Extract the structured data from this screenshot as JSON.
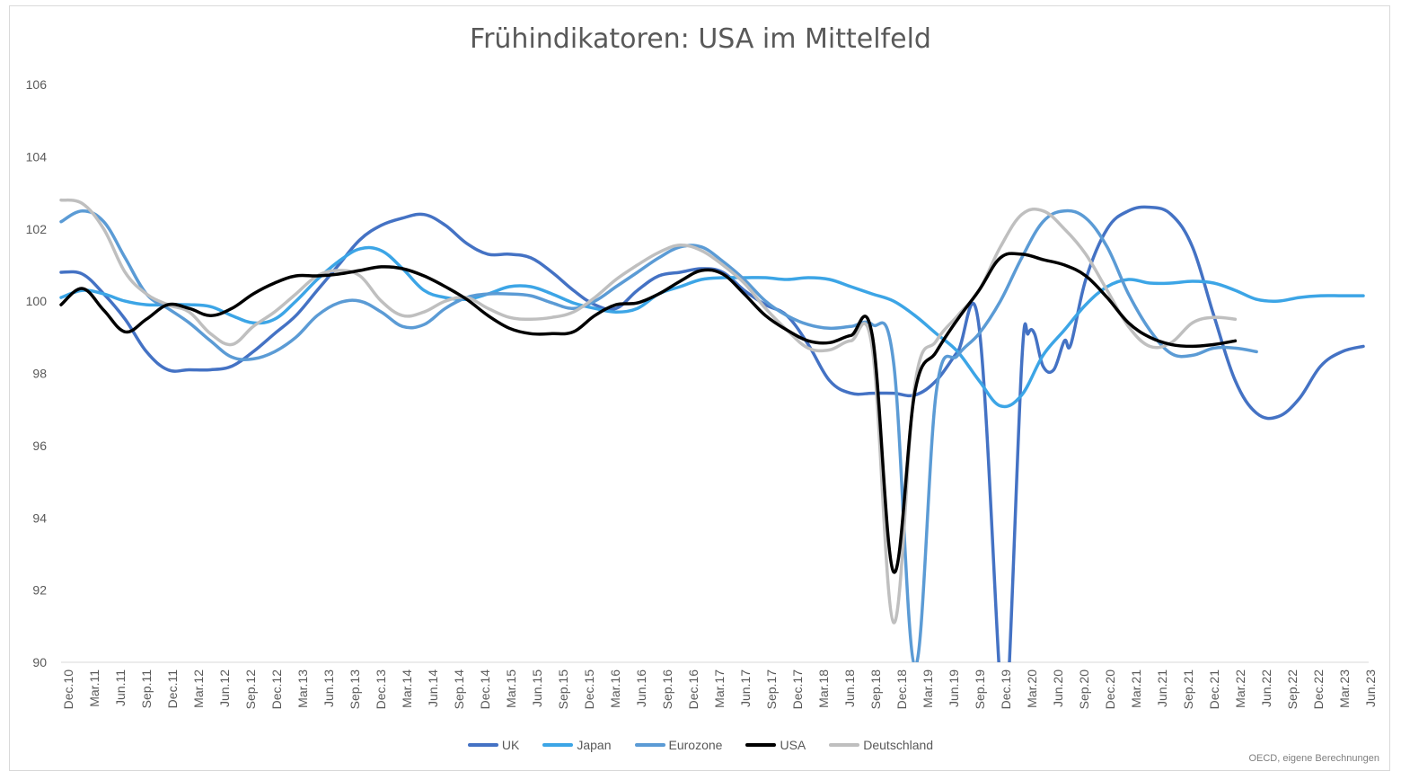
{
  "chart_data": {
    "type": "line",
    "title": "Frühindikatoren: USA im Mittelfeld",
    "source": "OECD, eigene Berechnungen",
    "ylim": [
      90,
      106
    ],
    "yticks": [
      90,
      92,
      94,
      96,
      98,
      100,
      102,
      104,
      106
    ],
    "grid": false,
    "legend_position": "bottom",
    "x_tick_labels": [
      "Dec.10",
      "Mar.11",
      "Jun.11",
      "Sep.11",
      "Dec.11",
      "Mar.12",
      "Jun.12",
      "Sep.12",
      "Dec.12",
      "Mar.13",
      "Jun.13",
      "Sep.13",
      "Dec.13",
      "Mar.14",
      "Jun.14",
      "Sep.14",
      "Dec.14",
      "Mar.15",
      "Jun.15",
      "Sep.15",
      "Dec.15",
      "Mar.16",
      "Jun.16",
      "Sep.16",
      "Dec.16",
      "Mar.17",
      "Jun.17",
      "Sep.17",
      "Dec.17",
      "Mar.18",
      "Jun.18",
      "Sep.18",
      "Dec.18",
      "Mar.19",
      "Jun.19",
      "Sep.19",
      "Dec.19",
      "Mar.20",
      "Jun.20",
      "Sep.20",
      "Dec.20",
      "Mar.21",
      "Jun.21",
      "Sep.21",
      "Dec.21",
      "Mar.22",
      "Jun.22",
      "Sep.22",
      "Dec.22",
      "Mar.23",
      "Jun.23"
    ],
    "series": [
      {
        "name": "UK",
        "color": "#4472C4",
        "points": [
          [
            0,
            100.8
          ],
          [
            1,
            100.75
          ],
          [
            2,
            100.2
          ],
          [
            3,
            99.5
          ],
          [
            4,
            98.6
          ],
          [
            5,
            98.1
          ],
          [
            6,
            98.1
          ],
          [
            7,
            98.1
          ],
          [
            8,
            98.2
          ],
          [
            9,
            98.6
          ],
          [
            10,
            99.1
          ],
          [
            11,
            99.6
          ],
          [
            12,
            100.3
          ],
          [
            13,
            101.0
          ],
          [
            14,
            101.7
          ],
          [
            15,
            102.1
          ],
          [
            16,
            102.3
          ],
          [
            17,
            102.4
          ],
          [
            18,
            102.1
          ],
          [
            19,
            101.6
          ],
          [
            20,
            101.3
          ],
          [
            21,
            101.3
          ],
          [
            22,
            101.2
          ],
          [
            23,
            100.8
          ],
          [
            24,
            100.3
          ],
          [
            25,
            99.9
          ],
          [
            26,
            99.8
          ],
          [
            27,
            100.3
          ],
          [
            28,
            100.7
          ],
          [
            29,
            100.8
          ],
          [
            30,
            100.9
          ],
          [
            31,
            100.8
          ],
          [
            32,
            100.3
          ],
          [
            33,
            99.9
          ],
          [
            34,
            99.6
          ],
          [
            35,
            98.8
          ],
          [
            36,
            97.8
          ],
          [
            37,
            97.45
          ],
          [
            38,
            97.45
          ],
          [
            39,
            97.45
          ],
          [
            40,
            97.4
          ],
          [
            41,
            97.8
          ],
          [
            42,
            98.6
          ],
          [
            43,
            99.3
          ],
          [
            44,
            89.3
          ],
          [
            44.3,
            88.5
          ],
          [
            45,
            98.3
          ],
          [
            45.3,
            99.1
          ],
          [
            45.6,
            99.1
          ],
          [
            46,
            98.2
          ],
          [
            46.5,
            98.1
          ],
          [
            47,
            98.9
          ],
          [
            47.3,
            98.8
          ],
          [
            48,
            100.6
          ],
          [
            49,
            102.0
          ],
          [
            50,
            102.5
          ],
          [
            51,
            102.6
          ],
          [
            52,
            102.4
          ],
          [
            53,
            101.5
          ],
          [
            54,
            99.6
          ],
          [
            55,
            97.8
          ],
          [
            56,
            96.9
          ],
          [
            57,
            96.8
          ],
          [
            58,
            97.3
          ],
          [
            59,
            98.2
          ],
          [
            60,
            98.6
          ],
          [
            61,
            98.75
          ]
        ]
      },
      {
        "name": "Japan",
        "color": "#3CA5E6",
        "points": [
          [
            0,
            100.1
          ],
          [
            1,
            100.3
          ],
          [
            2,
            100.2
          ],
          [
            3,
            100.0
          ],
          [
            4,
            99.9
          ],
          [
            5,
            99.9
          ],
          [
            6,
            99.9
          ],
          [
            7,
            99.85
          ],
          [
            8,
            99.6
          ],
          [
            9,
            99.4
          ],
          [
            10,
            99.5
          ],
          [
            11,
            100.0
          ],
          [
            12,
            100.6
          ],
          [
            13,
            101.1
          ],
          [
            14,
            101.45
          ],
          [
            15,
            101.4
          ],
          [
            16,
            100.9
          ],
          [
            17,
            100.3
          ],
          [
            18,
            100.1
          ],
          [
            19,
            100.05
          ],
          [
            20,
            100.2
          ],
          [
            21,
            100.4
          ],
          [
            22,
            100.4
          ],
          [
            23,
            100.2
          ],
          [
            24,
            99.95
          ],
          [
            25,
            99.8
          ],
          [
            26,
            99.7
          ],
          [
            27,
            99.8
          ],
          [
            28,
            100.2
          ],
          [
            29,
            100.4
          ],
          [
            30,
            100.6
          ],
          [
            31,
            100.65
          ],
          [
            32,
            100.65
          ],
          [
            33,
            100.65
          ],
          [
            34,
            100.6
          ],
          [
            35,
            100.65
          ],
          [
            36,
            100.6
          ],
          [
            37,
            100.4
          ],
          [
            38,
            100.2
          ],
          [
            39,
            100.0
          ],
          [
            40,
            99.6
          ],
          [
            41,
            99.1
          ],
          [
            42,
            98.6
          ],
          [
            43,
            97.8
          ],
          [
            44,
            97.1
          ],
          [
            45,
            97.4
          ],
          [
            46,
            98.5
          ],
          [
            47,
            99.2
          ],
          [
            48,
            99.9
          ],
          [
            49,
            100.4
          ],
          [
            50,
            100.6
          ],
          [
            51,
            100.5
          ],
          [
            52,
            100.5
          ],
          [
            53,
            100.55
          ],
          [
            54,
            100.5
          ],
          [
            55,
            100.3
          ],
          [
            56,
            100.05
          ],
          [
            57,
            100.0
          ],
          [
            58,
            100.1
          ],
          [
            59,
            100.15
          ],
          [
            60,
            100.15
          ],
          [
            61,
            100.15
          ]
        ]
      },
      {
        "name": "Eurozone",
        "color": "#5B9BD5",
        "points": [
          [
            0,
            102.2
          ],
          [
            1,
            102.5
          ],
          [
            2,
            102.2
          ],
          [
            3,
            101.2
          ],
          [
            4,
            100.2
          ],
          [
            5,
            99.8
          ],
          [
            6,
            99.4
          ],
          [
            7,
            98.9
          ],
          [
            8,
            98.45
          ],
          [
            9,
            98.4
          ],
          [
            10,
            98.6
          ],
          [
            11,
            99.0
          ],
          [
            12,
            99.6
          ],
          [
            13,
            99.95
          ],
          [
            14,
            100.0
          ],
          [
            15,
            99.7
          ],
          [
            16,
            99.3
          ],
          [
            17,
            99.35
          ],
          [
            18,
            99.8
          ],
          [
            19,
            100.1
          ],
          [
            20,
            100.2
          ],
          [
            21,
            100.2
          ],
          [
            22,
            100.15
          ],
          [
            23,
            99.95
          ],
          [
            24,
            99.8
          ],
          [
            25,
            100.0
          ],
          [
            26,
            100.4
          ],
          [
            27,
            100.8
          ],
          [
            28,
            101.2
          ],
          [
            29,
            101.5
          ],
          [
            30,
            101.5
          ],
          [
            31,
            101.1
          ],
          [
            32,
            100.6
          ],
          [
            33,
            100.0
          ],
          [
            34,
            99.6
          ],
          [
            35,
            99.35
          ],
          [
            36,
            99.25
          ],
          [
            37,
            99.3
          ],
          [
            38,
            99.35
          ],
          [
            39,
            98.3
          ],
          [
            40,
            89.9
          ],
          [
            41,
            97.5
          ],
          [
            42,
            98.5
          ],
          [
            43,
            99.1
          ],
          [
            44,
            100.0
          ],
          [
            45,
            101.2
          ],
          [
            46,
            102.2
          ],
          [
            47,
            102.5
          ],
          [
            48,
            102.3
          ],
          [
            49,
            101.5
          ],
          [
            50,
            100.2
          ],
          [
            51,
            99.2
          ],
          [
            52,
            98.55
          ],
          [
            53,
            98.5
          ],
          [
            54,
            98.7
          ],
          [
            55,
            98.7
          ],
          [
            56,
            98.6
          ]
        ]
      },
      {
        "name": "USA",
        "color": "#000000",
        "points": [
          [
            0,
            99.9
          ],
          [
            1,
            100.35
          ],
          [
            2,
            99.75
          ],
          [
            3,
            99.15
          ],
          [
            4,
            99.5
          ],
          [
            5,
            99.9
          ],
          [
            6,
            99.8
          ],
          [
            7,
            99.6
          ],
          [
            8,
            99.8
          ],
          [
            9,
            100.2
          ],
          [
            10,
            100.5
          ],
          [
            11,
            100.7
          ],
          [
            12,
            100.7
          ],
          [
            13,
            100.75
          ],
          [
            14,
            100.85
          ],
          [
            15,
            100.95
          ],
          [
            16,
            100.9
          ],
          [
            17,
            100.7
          ],
          [
            18,
            100.4
          ],
          [
            19,
            100.05
          ],
          [
            20,
            99.6
          ],
          [
            21,
            99.25
          ],
          [
            22,
            99.1
          ],
          [
            23,
            99.1
          ],
          [
            24,
            99.15
          ],
          [
            25,
            99.6
          ],
          [
            26,
            99.9
          ],
          [
            27,
            99.95
          ],
          [
            28,
            100.2
          ],
          [
            29,
            100.55
          ],
          [
            30,
            100.85
          ],
          [
            31,
            100.75
          ],
          [
            32,
            100.2
          ],
          [
            33,
            99.6
          ],
          [
            34,
            99.2
          ],
          [
            35,
            98.9
          ],
          [
            36,
            98.85
          ],
          [
            37,
            99.05
          ],
          [
            38,
            99.05
          ],
          [
            39,
            92.5
          ],
          [
            40,
            97.5
          ],
          [
            41,
            98.6
          ],
          [
            42,
            99.5
          ],
          [
            43,
            100.3
          ],
          [
            44,
            101.2
          ],
          [
            45,
            101.3
          ],
          [
            46,
            101.15
          ],
          [
            47,
            101.0
          ],
          [
            48,
            100.7
          ],
          [
            49,
            100.1
          ],
          [
            50,
            99.4
          ],
          [
            51,
            99.0
          ],
          [
            52,
            98.8
          ],
          [
            53,
            98.75
          ],
          [
            54,
            98.8
          ],
          [
            55,
            98.9
          ]
        ]
      },
      {
        "name": "Deutschland",
        "color": "#BFBFBF",
        "points": [
          [
            0,
            102.8
          ],
          [
            1,
            102.7
          ],
          [
            2,
            102.0
          ],
          [
            3,
            100.8
          ],
          [
            4,
            100.2
          ],
          [
            5,
            99.9
          ],
          [
            6,
            99.7
          ],
          [
            7,
            99.1
          ],
          [
            8,
            98.8
          ],
          [
            9,
            99.3
          ],
          [
            10,
            99.7
          ],
          [
            11,
            100.2
          ],
          [
            12,
            100.7
          ],
          [
            13,
            100.85
          ],
          [
            14,
            100.7
          ],
          [
            15,
            100.0
          ],
          [
            16,
            99.6
          ],
          [
            17,
            99.7
          ],
          [
            18,
            100.0
          ],
          [
            19,
            100.1
          ],
          [
            20,
            99.8
          ],
          [
            21,
            99.55
          ],
          [
            22,
            99.5
          ],
          [
            23,
            99.55
          ],
          [
            24,
            99.7
          ],
          [
            25,
            100.1
          ],
          [
            26,
            100.6
          ],
          [
            27,
            101.0
          ],
          [
            28,
            101.35
          ],
          [
            29,
            101.55
          ],
          [
            30,
            101.4
          ],
          [
            31,
            101.0
          ],
          [
            32,
            100.5
          ],
          [
            33,
            99.8
          ],
          [
            34,
            99.2
          ],
          [
            35,
            98.7
          ],
          [
            36,
            98.65
          ],
          [
            37,
            98.9
          ],
          [
            38,
            98.7
          ],
          [
            39,
            91.1
          ],
          [
            40,
            97.7
          ],
          [
            41,
            98.9
          ],
          [
            42,
            99.6
          ],
          [
            43,
            100.3
          ],
          [
            44,
            101.5
          ],
          [
            45,
            102.4
          ],
          [
            46,
            102.5
          ],
          [
            47,
            102.0
          ],
          [
            48,
            101.3
          ],
          [
            49,
            100.3
          ],
          [
            50,
            99.3
          ],
          [
            51,
            98.75
          ],
          [
            52,
            98.85
          ],
          [
            53,
            99.4
          ],
          [
            54,
            99.55
          ],
          [
            55,
            99.5
          ]
        ]
      }
    ]
  }
}
